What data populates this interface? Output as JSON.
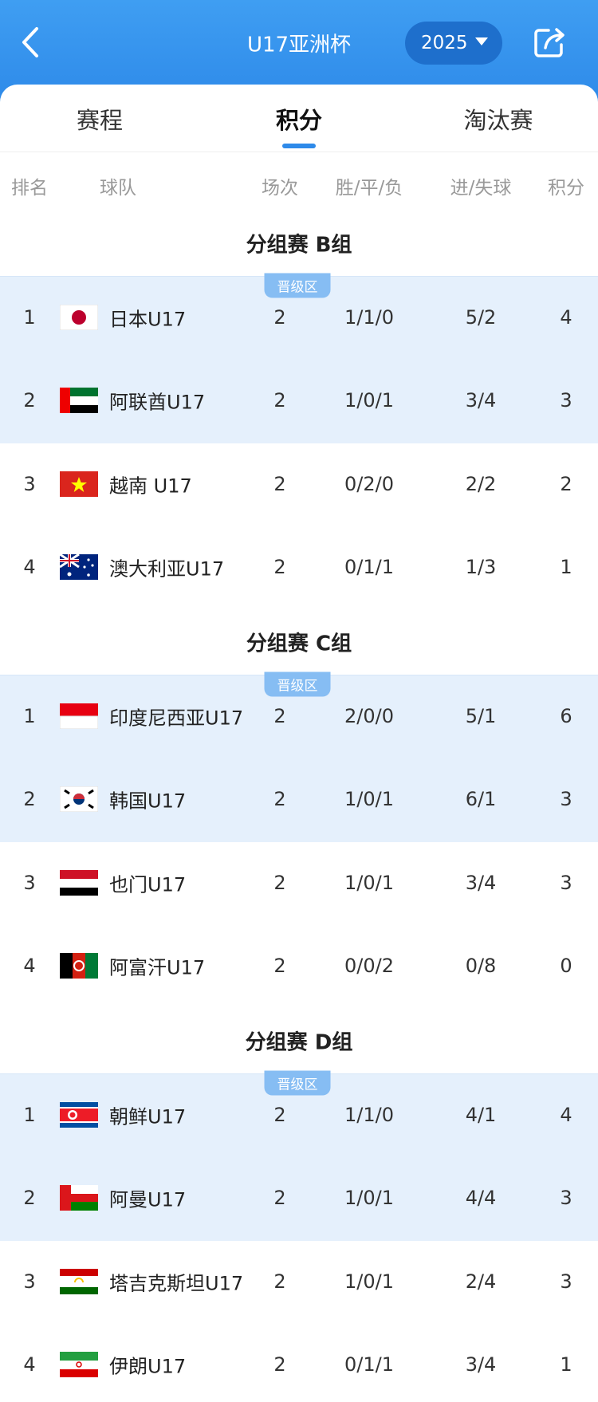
{
  "header": {
    "title": "U17亚洲杯",
    "year": "2025"
  },
  "tabs": [
    "赛程",
    "积分",
    "淘汰赛"
  ],
  "columns": [
    "排名",
    "球队",
    "场次",
    "胜/平/负",
    "进/失球",
    "积分"
  ],
  "groups": [
    {
      "title": "分组赛 B组",
      "badge": "晋级区",
      "rows": [
        {
          "rank": 1,
          "team": "日本U17",
          "played": 2,
          "record": "1/1/0",
          "goals": "5/2",
          "points": 4
        },
        {
          "rank": 2,
          "team": "阿联酋U17",
          "played": 2,
          "record": "1/0/1",
          "goals": "3/4",
          "points": 3
        },
        {
          "rank": 3,
          "team": "越南 U17",
          "played": 2,
          "record": "0/2/0",
          "goals": "2/2",
          "points": 2
        },
        {
          "rank": 4,
          "team": "澳大利亚U17",
          "played": 2,
          "record": "0/1/1",
          "goals": "1/3",
          "points": 1
        }
      ]
    },
    {
      "title": "分组赛 C组",
      "badge": "晋级区",
      "rows": [
        {
          "rank": 1,
          "team": "印度尼西亚U17",
          "played": 2,
          "record": "2/0/0",
          "goals": "5/1",
          "points": 6
        },
        {
          "rank": 2,
          "team": "韩国U17",
          "played": 2,
          "record": "1/0/1",
          "goals": "6/1",
          "points": 3
        },
        {
          "rank": 3,
          "team": "也门U17",
          "played": 2,
          "record": "1/0/1",
          "goals": "3/4",
          "points": 3
        },
        {
          "rank": 4,
          "team": "阿富汗U17",
          "played": 2,
          "record": "0/0/2",
          "goals": "0/8",
          "points": 0
        }
      ]
    },
    {
      "title": "分组赛 D组",
      "badge": "晋级区",
      "rows": [
        {
          "rank": 1,
          "team": "朝鲜U17",
          "played": 2,
          "record": "1/1/0",
          "goals": "4/1",
          "points": 4
        },
        {
          "rank": 2,
          "team": "阿曼U17",
          "played": 2,
          "record": "1/0/1",
          "goals": "4/4",
          "points": 3
        },
        {
          "rank": 3,
          "team": "塔吉克斯坦U17",
          "played": 2,
          "record": "1/0/1",
          "goals": "2/4",
          "points": 3
        },
        {
          "rank": 4,
          "team": "伊朗U17",
          "played": 2,
          "record": "0/1/1",
          "goals": "3/4",
          "points": 1
        }
      ]
    }
  ]
}
